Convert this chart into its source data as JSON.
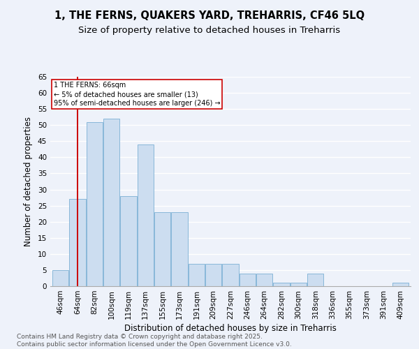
{
  "title": "1, THE FERNS, QUAKERS YARD, TREHARRIS, CF46 5LQ",
  "subtitle": "Size of property relative to detached houses in Treharris",
  "xlabel": "Distribution of detached houses by size in Treharris",
  "ylabel": "Number of detached properties",
  "categories": [
    "46sqm",
    "64sqm",
    "82sqm",
    "100sqm",
    "119sqm",
    "137sqm",
    "155sqm",
    "173sqm",
    "191sqm",
    "209sqm",
    "227sqm",
    "246sqm",
    "264sqm",
    "282sqm",
    "300sqm",
    "318sqm",
    "336sqm",
    "355sqm",
    "373sqm",
    "391sqm",
    "409sqm"
  ],
  "values": [
    5,
    27,
    51,
    52,
    28,
    44,
    23,
    23,
    7,
    7,
    7,
    4,
    4,
    1,
    1,
    4,
    0,
    0,
    0,
    0,
    1
  ],
  "bar_color": "#ccddf0",
  "bar_edge_color": "#7bafd4",
  "redline_index": 1,
  "redline_label": "1 THE FERNS: 66sqm",
  "annotation_line2": "← 5% of detached houses are smaller (13)",
  "annotation_line3": "95% of semi-detached houses are larger (246) →",
  "annotation_box_color": "#ffffff",
  "annotation_box_edge": "#cc0000",
  "redline_color": "#cc0000",
  "ylim": [
    0,
    65
  ],
  "yticks": [
    0,
    5,
    10,
    15,
    20,
    25,
    30,
    35,
    40,
    45,
    50,
    55,
    60,
    65
  ],
  "background_color": "#eef2fa",
  "grid_color": "#ffffff",
  "footer": "Contains HM Land Registry data © Crown copyright and database right 2025.\nContains public sector information licensed under the Open Government Licence v3.0.",
  "title_fontsize": 10.5,
  "subtitle_fontsize": 9.5,
  "xlabel_fontsize": 8.5,
  "ylabel_fontsize": 8.5,
  "tick_fontsize": 7.5,
  "footer_fontsize": 6.5,
  "annot_fontsize": 7
}
